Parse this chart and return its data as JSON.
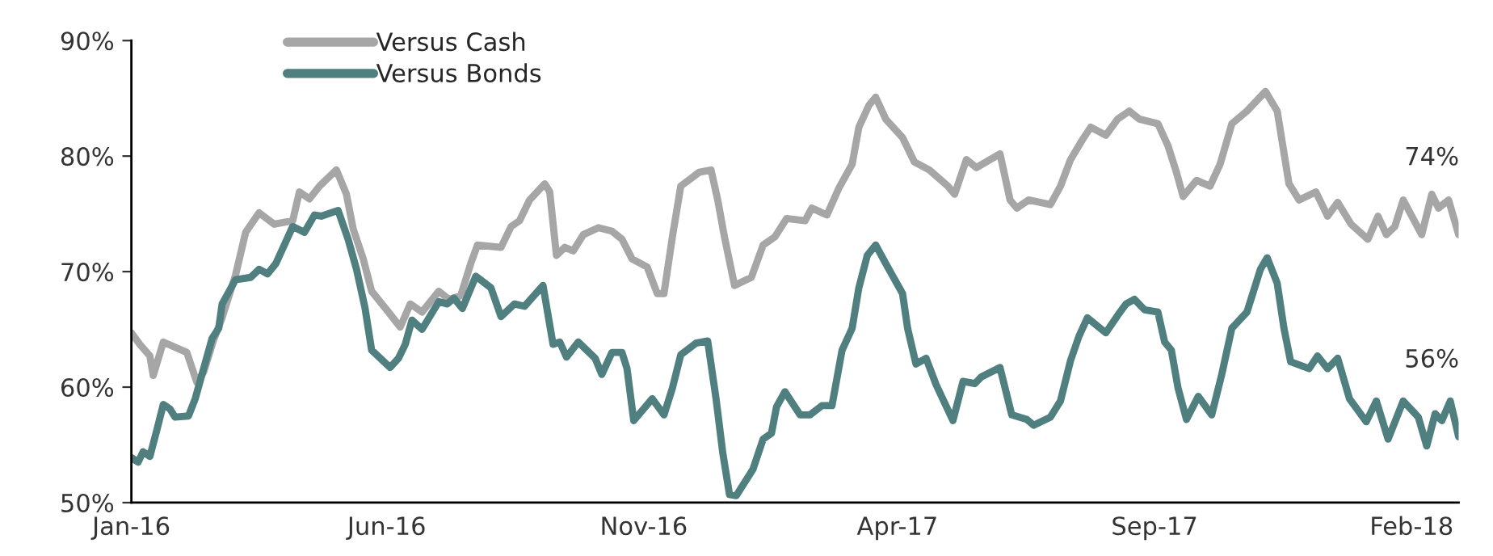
{
  "chart_data": {
    "type": "line",
    "xlim": [
      "2016-01-01",
      "2018-03-01"
    ],
    "xticks": [
      {
        "value": "2016-01-01",
        "label": "Jan-16"
      },
      {
        "value": "2016-06-01",
        "label": "Jun-16"
      },
      {
        "value": "2016-11-01",
        "label": "Nov-16"
      },
      {
        "value": "2017-04-01",
        "label": "Apr-17"
      },
      {
        "value": "2017-09-01",
        "label": "Sep-17"
      },
      {
        "value": "2018-02-01",
        "label": "Feb-18"
      }
    ],
    "ylim": [
      50,
      90
    ],
    "yticks": [
      {
        "value": 50,
        "label": "50%"
      },
      {
        "value": 60,
        "label": "60%"
      },
      {
        "value": 70,
        "label": "70%"
      },
      {
        "value": 80,
        "label": "80%"
      },
      {
        "value": 90,
        "label": "90%"
      }
    ],
    "grid": false,
    "legend": "top left",
    "line_style": "solid",
    "annotations": [
      "74%",
      "56%"
    ],
    "series": [
      {
        "name": "Versus Cash",
        "color": "#a6a6a6",
        "x": [
          "2016-01-01",
          "2016-01-06",
          "2016-01-12",
          "2016-01-14",
          "2016-01-20",
          "2016-02-03",
          "2016-02-09",
          "2016-02-13",
          "2016-02-19",
          "2016-02-24",
          "2016-03-03",
          "2016-03-09",
          "2016-03-17",
          "2016-03-26",
          "2016-04-06",
          "2016-04-10",
          "2016-04-16",
          "2016-04-22",
          "2016-05-02",
          "2016-05-08",
          "2016-05-12",
          "2016-05-18",
          "2016-05-23",
          "2016-06-02",
          "2016-06-09",
          "2016-06-15",
          "2016-06-22",
          "2016-07-02",
          "2016-07-08",
          "2016-07-15",
          "2016-07-21",
          "2016-07-25",
          "2016-08-08",
          "2016-08-14",
          "2016-08-19",
          "2016-08-25",
          "2016-09-03",
          "2016-09-06",
          "2016-09-10",
          "2016-09-15",
          "2016-09-20",
          "2016-09-26",
          "2016-10-05",
          "2016-10-13",
          "2016-10-19",
          "2016-10-25",
          "2016-11-03",
          "2016-11-09",
          "2016-11-13",
          "2016-11-18",
          "2016-11-23",
          "2016-12-04",
          "2016-12-11",
          "2016-12-15",
          "2016-12-19",
          "2016-12-25",
          "2017-01-04",
          "2017-01-11",
          "2017-01-18",
          "2017-01-25",
          "2017-02-05",
          "2017-02-09",
          "2017-02-18",
          "2017-02-25",
          "2017-03-05",
          "2017-03-09",
          "2017-03-15",
          "2017-03-19",
          "2017-03-25",
          "2017-04-04",
          "2017-04-11",
          "2017-04-20",
          "2017-05-01",
          "2017-05-05",
          "2017-05-12",
          "2017-05-18",
          "2017-06-01",
          "2017-06-07",
          "2017-06-11",
          "2017-06-18",
          "2017-07-01",
          "2017-07-07",
          "2017-07-13",
          "2017-07-20",
          "2017-07-25",
          "2017-08-03",
          "2017-08-10",
          "2017-08-17",
          "2017-08-23",
          "2017-09-03",
          "2017-09-09",
          "2017-09-14",
          "2017-09-18",
          "2017-09-26",
          "2017-10-04",
          "2017-10-10",
          "2017-10-17",
          "2017-10-26",
          "2017-11-06",
          "2017-11-13",
          "2017-11-20",
          "2017-11-26",
          "2017-12-06",
          "2017-12-13",
          "2017-12-19",
          "2017-12-27",
          "2018-01-06",
          "2018-01-12",
          "2018-01-17",
          "2018-01-22",
          "2018-01-27",
          "2018-02-07",
          "2018-02-13",
          "2018-02-17",
          "2018-02-23",
          "2018-03-01"
        ],
        "values": [
          64.7,
          63.7,
          62.7,
          61.0,
          63.9,
          63.0,
          60.4,
          61.3,
          64.1,
          66.0,
          69.7,
          73.4,
          75.1,
          74.1,
          74.4,
          76.9,
          76.3,
          77.4,
          78.8,
          76.7,
          73.7,
          71.1,
          68.3,
          66.5,
          65.2,
          67.2,
          66.5,
          68.3,
          67.6,
          67.9,
          70.7,
          72.3,
          72.1,
          73.9,
          74.4,
          76.2,
          77.6,
          76.9,
          71.4,
          72.1,
          71.8,
          73.2,
          73.8,
          73.5,
          72.8,
          71.1,
          70.4,
          68.1,
          68.1,
          73.0,
          77.4,
          78.6,
          78.8,
          76.2,
          73.0,
          68.8,
          69.5,
          72.3,
          73.0,
          74.6,
          74.4,
          75.5,
          74.9,
          77.2,
          79.3,
          82.5,
          84.4,
          85.1,
          83.2,
          81.6,
          79.5,
          78.8,
          77.4,
          76.7,
          79.7,
          79.0,
          80.2,
          76.2,
          75.5,
          76.2,
          75.8,
          77.4,
          79.7,
          81.4,
          82.5,
          81.8,
          83.2,
          83.9,
          83.2,
          82.8,
          80.9,
          78.6,
          76.5,
          77.9,
          77.4,
          79.3,
          82.8,
          83.9,
          85.6,
          83.9,
          77.6,
          76.2,
          76.9,
          74.8,
          76.0,
          74.1,
          72.8,
          74.8,
          73.2,
          73.9,
          76.2,
          73.2,
          76.7,
          75.5,
          76.2,
          73.2
        ]
      },
      {
        "name": "Versus Bonds",
        "color": "#4f7f7e",
        "x": [
          "2016-01-01",
          "2016-01-05",
          "2016-01-08",
          "2016-01-12",
          "2016-01-16",
          "2016-01-20",
          "2016-01-24",
          "2016-01-27",
          "2016-02-04",
          "2016-02-08",
          "2016-02-13",
          "2016-02-18",
          "2016-02-22",
          "2016-02-24",
          "2016-03-03",
          "2016-03-12",
          "2016-03-17",
          "2016-03-22",
          "2016-03-27",
          "2016-04-06",
          "2016-04-13",
          "2016-04-19",
          "2016-04-23",
          "2016-05-03",
          "2016-05-09",
          "2016-05-14",
          "2016-05-19",
          "2016-05-23",
          "2016-06-03",
          "2016-06-08",
          "2016-06-12",
          "2016-06-16",
          "2016-06-22",
          "2016-07-02",
          "2016-07-07",
          "2016-07-11",
          "2016-07-16",
          "2016-07-24",
          "2016-08-02",
          "2016-08-08",
          "2016-08-16",
          "2016-08-22",
          "2016-09-02",
          "2016-09-08",
          "2016-09-12",
          "2016-09-16",
          "2016-09-23",
          "2016-10-03",
          "2016-10-07",
          "2016-10-13",
          "2016-10-19",
          "2016-10-22",
          "2016-10-26",
          "2016-11-06",
          "2016-11-13",
          "2016-11-18",
          "2016-11-23",
          "2016-12-02",
          "2016-12-09",
          "2016-12-14",
          "2016-12-18",
          "2016-12-22",
          "2016-12-26",
          "2017-01-05",
          "2017-01-11",
          "2017-01-16",
          "2017-01-19",
          "2017-01-24",
          "2017-02-02",
          "2017-02-08",
          "2017-02-15",
          "2017-02-21",
          "2017-02-27",
          "2017-03-05",
          "2017-03-09",
          "2017-03-14",
          "2017-03-19",
          "2017-03-25",
          "2017-04-04",
          "2017-04-07",
          "2017-04-12",
          "2017-04-18",
          "2017-04-24",
          "2017-05-04",
          "2017-05-10",
          "2017-05-17",
          "2017-05-21",
          "2017-06-01",
          "2017-06-08",
          "2017-06-17",
          "2017-06-21",
          "2017-07-01",
          "2017-07-07",
          "2017-07-13",
          "2017-07-18",
          "2017-07-23",
          "2017-08-03",
          "2017-08-10",
          "2017-08-15",
          "2017-08-20",
          "2017-08-26",
          "2017-09-03",
          "2017-09-07",
          "2017-09-11",
          "2017-09-15",
          "2017-09-20",
          "2017-09-27",
          "2017-10-05",
          "2017-10-11",
          "2017-10-17",
          "2017-10-26",
          "2017-11-03",
          "2017-11-07",
          "2017-11-13",
          "2017-11-17",
          "2017-11-21",
          "2017-12-02",
          "2017-12-07",
          "2017-12-13",
          "2017-12-19",
          "2017-12-26",
          "2018-01-05",
          "2018-01-11",
          "2018-01-18",
          "2018-01-27",
          "2018-02-05",
          "2018-02-10",
          "2018-02-15",
          "2018-02-19",
          "2018-02-24",
          "2018-03-01"
        ],
        "values": [
          53.9,
          53.5,
          54.4,
          54.0,
          56.2,
          58.5,
          58.1,
          57.4,
          57.5,
          59.0,
          61.6,
          64.2,
          65.1,
          67.2,
          69.3,
          69.5,
          70.2,
          69.8,
          70.7,
          73.9,
          73.4,
          74.9,
          74.8,
          75.3,
          72.8,
          70.2,
          66.9,
          63.2,
          61.7,
          62.5,
          63.7,
          65.8,
          65.0,
          67.4,
          67.2,
          67.7,
          66.8,
          69.6,
          68.6,
          66.1,
          67.2,
          67.0,
          68.8,
          63.7,
          63.9,
          62.6,
          63.9,
          62.5,
          61.1,
          63.0,
          63.0,
          61.6,
          57.1,
          59.0,
          57.6,
          59.9,
          62.8,
          63.8,
          64.0,
          59.0,
          54.3,
          50.7,
          50.6,
          52.9,
          55.5,
          56.0,
          58.3,
          59.6,
          57.6,
          57.6,
          58.4,
          58.4,
          63.2,
          65.1,
          68.6,
          71.4,
          72.3,
          70.7,
          68.1,
          65.1,
          62.0,
          62.5,
          60.2,
          57.1,
          60.5,
          60.3,
          60.9,
          61.7,
          57.6,
          57.2,
          56.7,
          57.4,
          58.8,
          62.3,
          64.4,
          66.0,
          64.7,
          66.2,
          67.2,
          67.6,
          66.7,
          66.5,
          63.9,
          63.2,
          59.9,
          57.2,
          59.2,
          57.6,
          61.1,
          65.1,
          66.5,
          70.2,
          71.2,
          69.0,
          65.1,
          62.2,
          61.6,
          62.7,
          61.6,
          62.5,
          59.0,
          57.0,
          58.8,
          55.5,
          58.8,
          57.4,
          54.9,
          57.7,
          57.1,
          58.8,
          55.7
        ]
      }
    ]
  }
}
